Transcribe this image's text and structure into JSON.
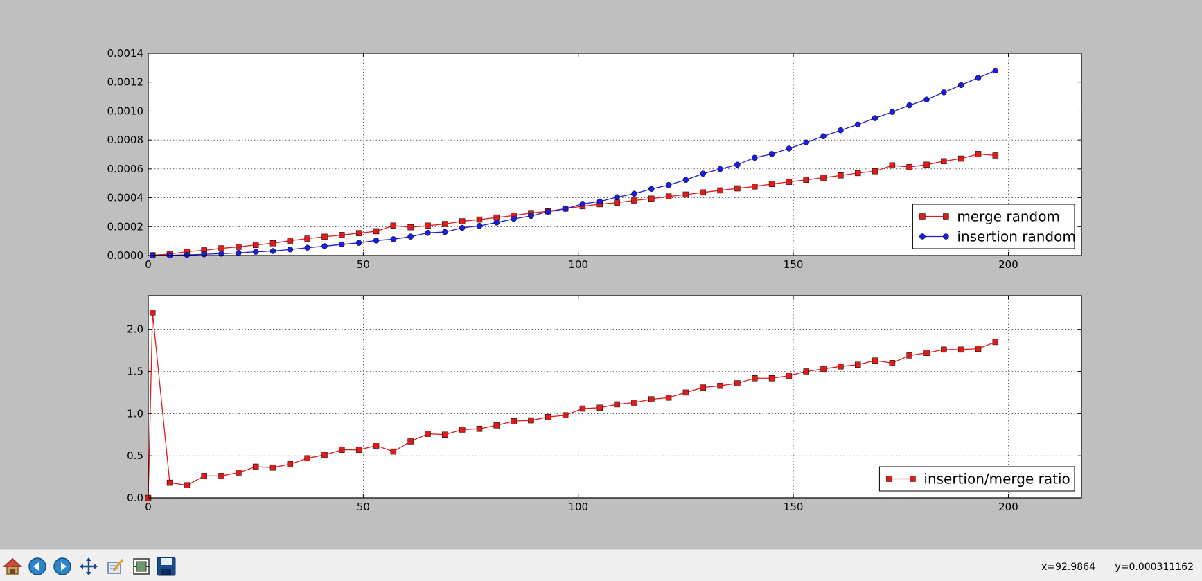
{
  "toolbar": {
    "buttons": [
      {
        "name": "home-icon",
        "tooltip": "Home"
      },
      {
        "name": "back-icon",
        "tooltip": "Back"
      },
      {
        "name": "forward-icon",
        "tooltip": "Forward"
      },
      {
        "name": "pan-icon",
        "tooltip": "Pan"
      },
      {
        "name": "zoom-icon",
        "tooltip": "Zoom"
      },
      {
        "name": "configure-subplots-icon",
        "tooltip": "Configure subplots"
      },
      {
        "name": "save-icon",
        "tooltip": "Save"
      }
    ]
  },
  "status": {
    "x_readout": "x=92.9864",
    "y_readout": "y=0.000311162"
  },
  "colors": {
    "merge": "#dd1c1c",
    "insertion": "#1c1cdd",
    "figure_bg": "#bfbfbf"
  },
  "chart_data": [
    {
      "type": "line",
      "xlim": [
        0,
        217
      ],
      "ylim": [
        0,
        0.0014
      ],
      "xticks": [
        "0",
        "50",
        "100",
        "150",
        "200"
      ],
      "yticks": [
        "0.0000",
        "0.0002",
        "0.0004",
        "0.0006",
        "0.0008",
        "0.0010",
        "0.0012",
        "0.0014"
      ],
      "xtick_values": [
        0,
        50,
        100,
        150,
        200
      ],
      "ytick_values": [
        0,
        0.0002,
        0.0004,
        0.0006,
        0.0008,
        0.001,
        0.0012,
        0.0014
      ],
      "grid": true,
      "legend": "lower-right",
      "x": [
        1,
        5,
        9,
        13,
        17,
        21,
        25,
        29,
        33,
        37,
        41,
        45,
        49,
        53,
        57,
        61,
        65,
        69,
        73,
        77,
        81,
        85,
        89,
        93,
        97,
        101,
        105,
        109,
        113,
        117,
        121,
        125,
        129,
        133,
        137,
        141,
        145,
        149,
        153,
        157,
        161,
        165,
        169,
        173,
        177,
        181,
        185,
        189,
        193,
        197
      ],
      "series": [
        {
          "name": "merge random",
          "marker": "square",
          "color": "#dd1c1c",
          "values": [
            2e-06,
            1e-05,
            2.7e-05,
            3.6e-05,
            5e-05,
            6e-05,
            7.3e-05,
            8.5e-05,
            0.000103,
            0.000117,
            0.00013,
            0.000142,
            0.000155,
            0.000168,
            0.000207,
            0.000196,
            0.000207,
            0.000218,
            0.000237,
            0.000249,
            0.000263,
            0.000277,
            0.000294,
            0.000306,
            0.000325,
            0.000341,
            0.000355,
            0.000366,
            0.000381,
            0.000394,
            0.000409,
            0.000422,
            0.000437,
            0.000451,
            0.000465,
            0.000478,
            0.000495,
            0.00051,
            0.000524,
            0.000539,
            0.000555,
            0.000571,
            0.000584,
            0.000624,
            0.000613,
            0.000629,
            0.000653,
            0.000671,
            0.000703,
            0.000693
          ]
        },
        {
          "name": "insertion random",
          "marker": "circle",
          "color": "#1c1cdd",
          "values": [
            5e-07,
            1.8e-06,
            4e-06,
            8.5e-06,
            1.3e-05,
            1.8e-05,
            2.6e-05,
            3.1e-05,
            4.2e-05,
            5.4e-05,
            6.5e-05,
            7.7e-05,
            8.8e-05,
            0.000104,
            0.000113,
            0.000131,
            0.000157,
            0.000163,
            0.000192,
            0.000205,
            0.000228,
            0.000254,
            0.000274,
            0.000303,
            0.000323,
            0.000358,
            0.000374,
            0.000404,
            0.000428,
            0.000461,
            0.000488,
            0.000524,
            0.000567,
            0.000599,
            0.000629,
            0.000677,
            0.000703,
            0.000741,
            0.000783,
            0.000826,
            0.000867,
            0.000907,
            0.000951,
            0.000994,
            0.00104,
            0.00108,
            0.00113,
            0.00118,
            0.00123,
            0.00128
          ]
        }
      ]
    },
    {
      "type": "line",
      "xlim": [
        0,
        217
      ],
      "ylim": [
        0,
        2.4
      ],
      "xticks": [
        "0",
        "50",
        "100",
        "150",
        "200"
      ],
      "yticks": [
        "0.0",
        "0.5",
        "1.0",
        "1.5",
        "2.0"
      ],
      "xtick_values": [
        0,
        50,
        100,
        150,
        200
      ],
      "ytick_values": [
        0,
        0.5,
        1.0,
        1.5,
        2.0
      ],
      "grid": true,
      "legend": "lower-right",
      "x": [
        0,
        1,
        5,
        9,
        13,
        17,
        21,
        25,
        29,
        33,
        37,
        41,
        45,
        49,
        53,
        57,
        61,
        65,
        69,
        73,
        77,
        81,
        85,
        89,
        93,
        97,
        101,
        105,
        109,
        113,
        117,
        121,
        125,
        129,
        133,
        137,
        141,
        145,
        149,
        153,
        157,
        161,
        165,
        169,
        173,
        177,
        181,
        185,
        189,
        193,
        197
      ],
      "series": [
        {
          "name": "insertion/merge ratio",
          "marker": "square",
          "color": "#dd1c1c",
          "values": [
            0.0,
            2.2,
            0.18,
            0.15,
            0.26,
            0.26,
            0.3,
            0.37,
            0.36,
            0.4,
            0.47,
            0.51,
            0.57,
            0.57,
            0.62,
            0.55,
            0.67,
            0.76,
            0.75,
            0.81,
            0.82,
            0.86,
            0.91,
            0.92,
            0.96,
            0.98,
            1.06,
            1.07,
            1.11,
            1.13,
            1.17,
            1.19,
            1.25,
            1.31,
            1.33,
            1.36,
            1.42,
            1.42,
            1.45,
            1.5,
            1.53,
            1.56,
            1.58,
            1.63,
            1.6,
            1.69,
            1.72,
            1.76,
            1.76,
            1.77,
            1.85
          ]
        }
      ]
    }
  ]
}
